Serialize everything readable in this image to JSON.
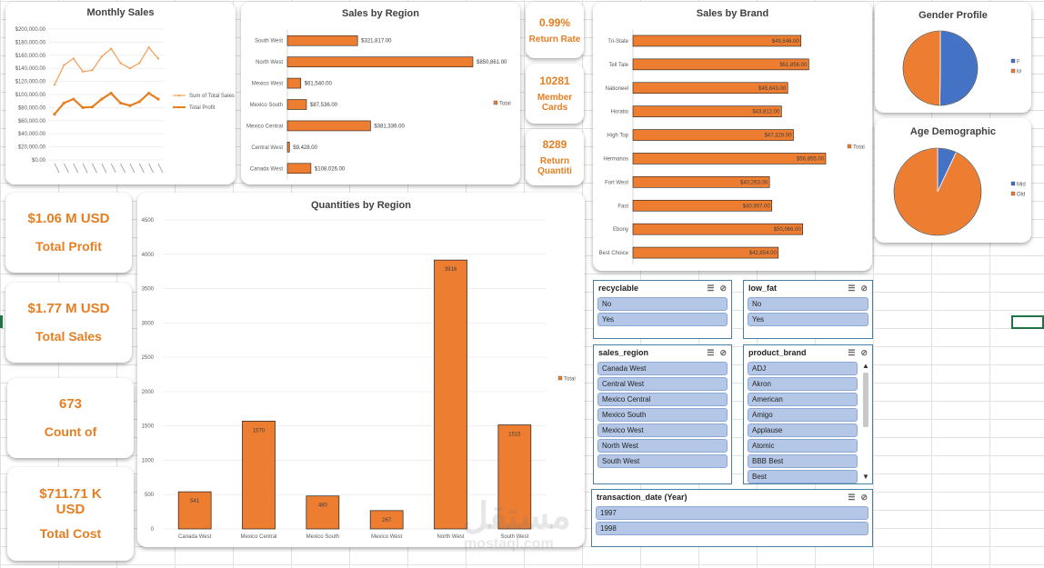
{
  "monthly_sales": {
    "title": "Monthly Sales",
    "chart_data": {
      "type": "line",
      "y_ticks": [
        "$200,000.00",
        "$180,000.00",
        "$160,000.00",
        "$140,000.00",
        "$120,000.00",
        "$100,000.00",
        "$80,000.00",
        "$60,000.00",
        "$40,000.00",
        "$20,000.00",
        "$0.00"
      ],
      "ylim": [
        0,
        200000
      ],
      "x_count": 12,
      "series": [
        {
          "name": "Sum of Total Sales",
          "color": "#f4a460",
          "values": [
            115000,
            145000,
            155000,
            135000,
            137000,
            158000,
            170000,
            148000,
            140000,
            148000,
            172000,
            155000
          ]
        },
        {
          "name": "Total Profit",
          "color": "#e67e22",
          "values": [
            70000,
            87000,
            93000,
            80000,
            81000,
            93000,
            102000,
            87000,
            83000,
            89000,
            102000,
            93000
          ]
        }
      ]
    }
  },
  "sales_by_region": {
    "title": "Sales by Region",
    "legend": "Total",
    "chart_data": {
      "type": "bar",
      "categories": [
        "South West",
        "North West",
        "Mexico West",
        "Mexico South",
        "Mexico Central",
        "Central West",
        "Canada West"
      ],
      "values": [
        321817,
        850861,
        61540,
        87536,
        381336,
        9428,
        108026
      ],
      "labels": [
        "$321,817.00",
        "$850,861.00",
        "$61,540.00",
        "$87,536.00",
        "$381,336.00",
        "$9,428.00",
        "$108,026.00"
      ],
      "xlim": [
        0,
        850861
      ]
    }
  },
  "kpis_small": [
    {
      "value": "0.99%",
      "label": "Return Rate"
    },
    {
      "value": "10281",
      "label": "Member Cards"
    },
    {
      "value": "8289",
      "label": "Return Quantiti"
    }
  ],
  "sales_by_brand": {
    "title": "Sales by Brand",
    "legend": "Total",
    "chart_data": {
      "type": "bar",
      "categories": [
        "Tri-State",
        "Tell Tale",
        "Nationeel",
        "Horatio",
        "High Top",
        "Hermanos",
        "Fort West",
        "Fast",
        "Ebony",
        "Best Choice"
      ],
      "values": [
        49546,
        51856,
        45643,
        43812,
        47329,
        56855,
        40263,
        40957,
        50066,
        42854
      ],
      "labels": [
        "$49,546.00",
        "$51,856.00",
        "$45,643.00",
        "$43,812.00",
        "$47,329.00",
        "$56,855.00",
        "$40,263.00",
        "$40,957.00",
        "$50,066.00",
        "$42,854.00"
      ],
      "xlim": [
        0,
        56855
      ]
    }
  },
  "gender_profile": {
    "title": "Gender Profile",
    "chart_data": {
      "type": "pie",
      "labels": [
        "F",
        "M"
      ],
      "values": [
        50.2,
        49.8
      ],
      "colors": [
        "#4472c4",
        "#ed7d31"
      ]
    }
  },
  "age_demographic": {
    "title": "Age Demographic",
    "chart_data": {
      "type": "pie",
      "labels": [
        "Mid",
        "Old"
      ],
      "values": [
        7,
        93
      ],
      "colors": [
        "#4472c4",
        "#ed7d31"
      ]
    }
  },
  "kpis_big": [
    {
      "value": "$1.06 M USD",
      "label": "Total Profit"
    },
    {
      "value": "$1.77 M USD",
      "label": "Total Sales"
    },
    {
      "value": "673",
      "label": "Count of"
    },
    {
      "value": "$711.71 K USD",
      "label": "Total Cost"
    }
  ],
  "quantities_by_region": {
    "title": "Quantities by Region",
    "legend": "Total",
    "chart_data": {
      "type": "bar",
      "categories": [
        "Canada West",
        "Mexico Central",
        "Mexico South",
        "Mexico West",
        "North West",
        "South West"
      ],
      "values": [
        541,
        1570,
        480,
        267,
        3916,
        1515
      ],
      "y_ticks": [
        0,
        500,
        1000,
        1500,
        2000,
        2500,
        3000,
        3500,
        4000,
        4500
      ],
      "ylim": [
        0,
        4500
      ]
    }
  },
  "slicers": {
    "recyclable": {
      "title": "recyclable",
      "items": [
        "No",
        "Yes"
      ]
    },
    "low_fat": {
      "title": "low_fat",
      "items": [
        "No",
        "Yes"
      ]
    },
    "sales_region": {
      "title": "sales_region",
      "items": [
        "Canada West",
        "Central West",
        "Mexico Central",
        "Mexico South",
        "Mexico West",
        "North West",
        "South West"
      ]
    },
    "product_brand": {
      "title": "product_brand",
      "items": [
        "ADJ",
        "Akron",
        "American",
        "Amigo",
        "Applause",
        "Atomic",
        "BBB Best",
        "Best"
      ]
    },
    "transaction_date": {
      "title": "transaction_date (Year)",
      "items": [
        "1997",
        "1998"
      ]
    }
  },
  "watermark": {
    "arabic": "مستقل",
    "latin": "mostaql.com"
  }
}
